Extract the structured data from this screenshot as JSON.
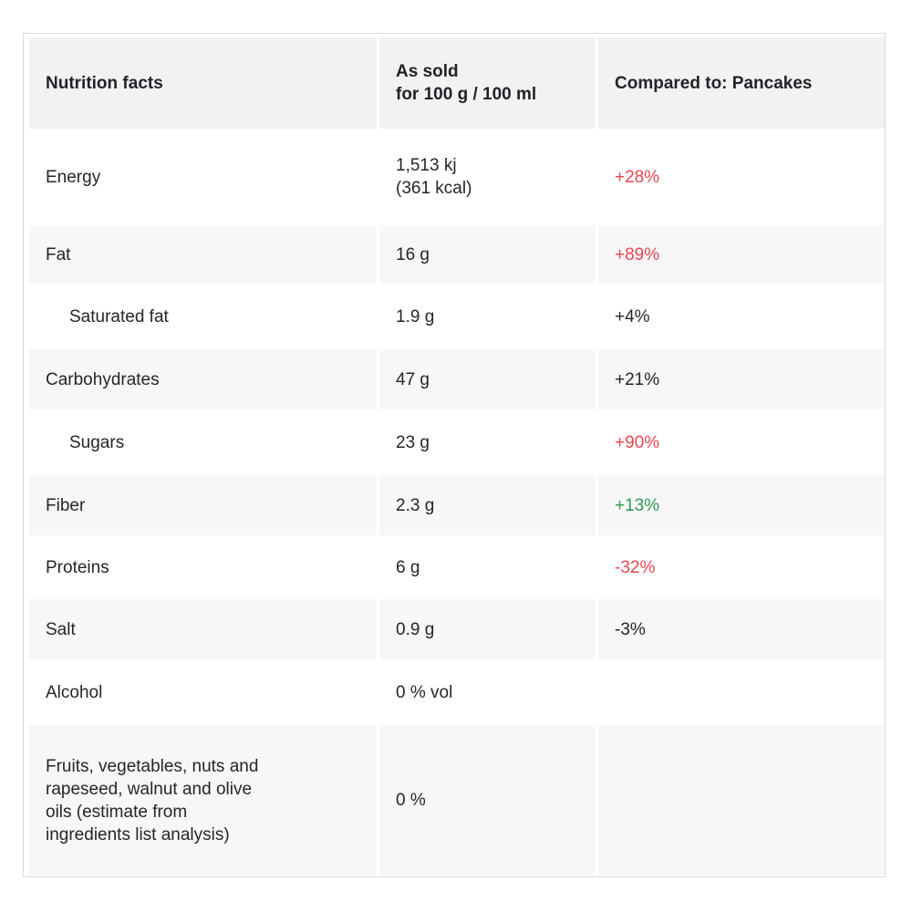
{
  "table": {
    "headers": {
      "col1": "Nutrition facts",
      "col2_line1": "As sold",
      "col2_line2": "for 100 g / 100 ml",
      "col3": "Compared to: Pancakes"
    },
    "rows": [
      {
        "name": "Energy",
        "value_line1": "1,513 kj",
        "value_line2": "(361 kcal)",
        "compare": "+28%",
        "compare_status": "bad"
      },
      {
        "name": "Fat",
        "value_line1": "16 g",
        "compare": "+89%",
        "compare_status": "bad"
      },
      {
        "name": "Saturated fat",
        "value_line1": "1.9 g",
        "compare": "+4%",
        "compare_status": "neutral"
      },
      {
        "name": "Carbohydrates",
        "value_line1": "47 g",
        "compare": "+21%",
        "compare_status": "neutral"
      },
      {
        "name": "Sugars",
        "value_line1": "23 g",
        "compare": "+90%",
        "compare_status": "bad"
      },
      {
        "name": "Fiber",
        "value_line1": "2.3 g",
        "compare": "+13%",
        "compare_status": "good"
      },
      {
        "name": "Proteins",
        "value_line1": "6 g",
        "compare": "-32%",
        "compare_status": "bad"
      },
      {
        "name": "Salt",
        "value_line1": "0.9 g",
        "compare": "-3%",
        "compare_status": "neutral"
      },
      {
        "name": "Alcohol",
        "value_line1": "0 % vol",
        "compare": ""
      },
      {
        "name_lines": [
          "Fruits, vegetables, nuts and",
          "rapeseed, walnut and olive",
          "oils (estimate from",
          "ingredients list analysis)"
        ],
        "value_line1": "0 %",
        "compare": ""
      }
    ]
  },
  "colors": {
    "bad": "#e5474f",
    "good": "#2e9a57",
    "neutral": "#23262b",
    "header_bg": "#f2f2f2",
    "stripe_bg": "#f7f7f7"
  }
}
